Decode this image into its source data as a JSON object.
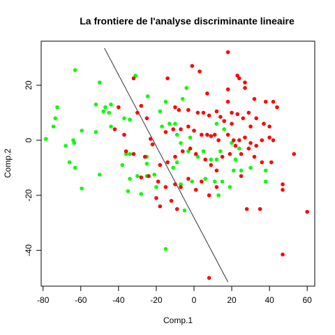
{
  "chart_data": {
    "type": "scatter",
    "title": "La frontiere de l'analyse discriminante lineaire",
    "xlabel": "Comp.1",
    "ylabel": "Comp.2",
    "xlim": [
      -81,
      64
    ],
    "ylim": [
      -53,
      36
    ],
    "x_ticks": [
      -80,
      -60,
      -40,
      -20,
      0,
      20,
      40,
      60
    ],
    "y_ticks": [
      -40,
      -20,
      0,
      20
    ],
    "grid": false,
    "boundary_line": {
      "x": [
        -47.5,
        18
      ],
      "y": [
        33.5,
        -51.5
      ],
      "color": "#333333"
    },
    "series": [
      {
        "color": "#00ff00",
        "points": [
          [
            -63,
            25.5
          ],
          [
            -50,
            21
          ],
          [
            -31,
            23.5
          ],
          [
            -72.5,
            12
          ],
          [
            -73.5,
            8
          ],
          [
            -47,
            12
          ],
          [
            -44,
            13
          ],
          [
            -52,
            13
          ],
          [
            -48,
            10.5
          ],
          [
            -45,
            10
          ],
          [
            -37,
            8
          ],
          [
            -34,
            7.5
          ],
          [
            -44,
            5
          ],
          [
            -59.5,
            3.5
          ],
          [
            -52,
            3
          ],
          [
            -64,
            0
          ],
          [
            -63.5,
            -1
          ],
          [
            -68,
            -2
          ],
          [
            -78.5,
            0.5
          ],
          [
            -74.5,
            5
          ],
          [
            -66,
            -8
          ],
          [
            -63,
            -10
          ],
          [
            -59.5,
            -17.5
          ],
          [
            -50,
            -12.5
          ],
          [
            -38,
            -9
          ],
          [
            -34,
            -5
          ],
          [
            -30,
            -13
          ],
          [
            -25,
            -8.5
          ],
          [
            -25,
            -13
          ],
          [
            -34,
            -14
          ],
          [
            -35,
            -18.5
          ],
          [
            -28,
            -19.5
          ],
          [
            -21,
            -12.5
          ],
          [
            -20,
            -17
          ],
          [
            -24.5,
            16
          ],
          [
            -18,
            10.5
          ],
          [
            -15,
            14
          ],
          [
            -17,
            5
          ],
          [
            -13,
            6
          ],
          [
            -10,
            6
          ],
          [
            -9,
            2
          ],
          [
            -7,
            -1
          ],
          [
            -6,
            15
          ],
          [
            -3,
            -4
          ],
          [
            -5,
            -25.5
          ],
          [
            -15,
            -39.5
          ],
          [
            -4,
            19
          ],
          [
            -2,
            1
          ],
          [
            -1,
            -15
          ],
          [
            2,
            -6
          ],
          [
            5,
            -4
          ],
          [
            6,
            -14
          ],
          [
            9,
            -7
          ],
          [
            11,
            -15
          ],
          [
            12,
            -7
          ],
          [
            14,
            -4
          ],
          [
            15,
            -15
          ],
          [
            16,
            4
          ],
          [
            19,
            -17
          ],
          [
            21,
            -11
          ],
          [
            22,
            -7
          ],
          [
            25,
            -11
          ],
          [
            30,
            -10
          ],
          [
            38,
            -11
          ],
          [
            38,
            -15
          ],
          [
            13,
            -20
          ],
          [
            20,
            -1
          ],
          [
            24,
            -3
          ],
          [
            -9,
            -8
          ],
          [
            -11,
            -10
          ],
          [
            -25,
            -6
          ],
          [
            -36,
            -5
          ],
          [
            -7,
            -16
          ],
          [
            12,
            6
          ]
        ]
      },
      {
        "color": "#ff0000",
        "points": [
          [
            18,
            32
          ],
          [
            -32,
            22.5
          ],
          [
            -14,
            22.5
          ],
          [
            -1,
            27
          ],
          [
            3,
            25
          ],
          [
            23,
            23.5
          ],
          [
            24,
            22.5
          ],
          [
            27,
            21
          ],
          [
            27,
            19
          ],
          [
            18,
            18.5
          ],
          [
            7,
            17
          ],
          [
            18,
            14
          ],
          [
            32,
            15
          ],
          [
            38,
            14
          ],
          [
            42,
            14
          ],
          [
            -28,
            12.5
          ],
          [
            -10,
            12
          ],
          [
            -8,
            11
          ],
          [
            -3,
            11
          ],
          [
            2,
            10
          ],
          [
            5,
            10
          ],
          [
            8,
            9
          ],
          [
            12,
            10.5
          ],
          [
            14,
            8.5
          ],
          [
            16,
            7
          ],
          [
            20,
            10
          ],
          [
            23,
            9.5
          ],
          [
            26,
            8
          ],
          [
            29,
            10
          ],
          [
            33,
            8
          ],
          [
            37,
            6
          ],
          [
            40,
            5
          ],
          [
            -42,
            4
          ],
          [
            -37,
            2
          ],
          [
            -23,
            0.5
          ],
          [
            -22,
            -1.5
          ],
          [
            -15,
            3
          ],
          [
            -11,
            4
          ],
          [
            -7,
            4
          ],
          [
            -3,
            5
          ],
          [
            0,
            3.5
          ],
          [
            4,
            2
          ],
          [
            7,
            2
          ],
          [
            9,
            1.5
          ],
          [
            11,
            2
          ],
          [
            13,
            0
          ],
          [
            18,
            2
          ],
          [
            21,
            0
          ],
          [
            24,
            0
          ],
          [
            27,
            1
          ],
          [
            30,
            -1
          ],
          [
            33,
            -2
          ],
          [
            36,
            0
          ],
          [
            40,
            1
          ],
          [
            42,
            0
          ],
          [
            -36,
            -4
          ],
          [
            -32,
            -5
          ],
          [
            -26,
            -6
          ],
          [
            -18,
            -9
          ],
          [
            -14,
            -8
          ],
          [
            -10,
            -6
          ],
          [
            -6,
            -4
          ],
          [
            -2,
            -3
          ],
          [
            1,
            -5
          ],
          [
            6,
            -7
          ],
          [
            9,
            -9
          ],
          [
            12,
            -11
          ],
          [
            15,
            -6
          ],
          [
            19,
            -5
          ],
          [
            22,
            -2
          ],
          [
            25,
            -5
          ],
          [
            29,
            -3
          ],
          [
            32,
            -6
          ],
          [
            36,
            -8
          ],
          [
            41,
            -8
          ],
          [
            -28,
            -13.5
          ],
          [
            -24,
            -13
          ],
          [
            -19,
            -15
          ],
          [
            -15,
            -17
          ],
          [
            -10,
            -16
          ],
          [
            -7,
            -17
          ],
          [
            -3,
            -14
          ],
          [
            1,
            -18
          ],
          [
            4,
            -15
          ],
          [
            8,
            -20
          ],
          [
            12,
            -17
          ],
          [
            -20,
            -21
          ],
          [
            -12,
            -22
          ],
          [
            -9,
            -25
          ],
          [
            -18,
            -24
          ],
          [
            28,
            -25
          ],
          [
            35,
            -25
          ],
          [
            47,
            -16
          ],
          [
            47,
            -18
          ],
          [
            53,
            -5
          ],
          [
            60,
            -26
          ],
          [
            47,
            -41.5
          ],
          [
            8,
            -50
          ],
          [
            -40,
            12
          ],
          [
            -25,
            8
          ],
          [
            -30,
            10
          ],
          [
            30,
            5
          ],
          [
            20,
            6
          ],
          [
            25,
            -13
          ],
          [
            44,
            12
          ]
        ]
      }
    ]
  }
}
